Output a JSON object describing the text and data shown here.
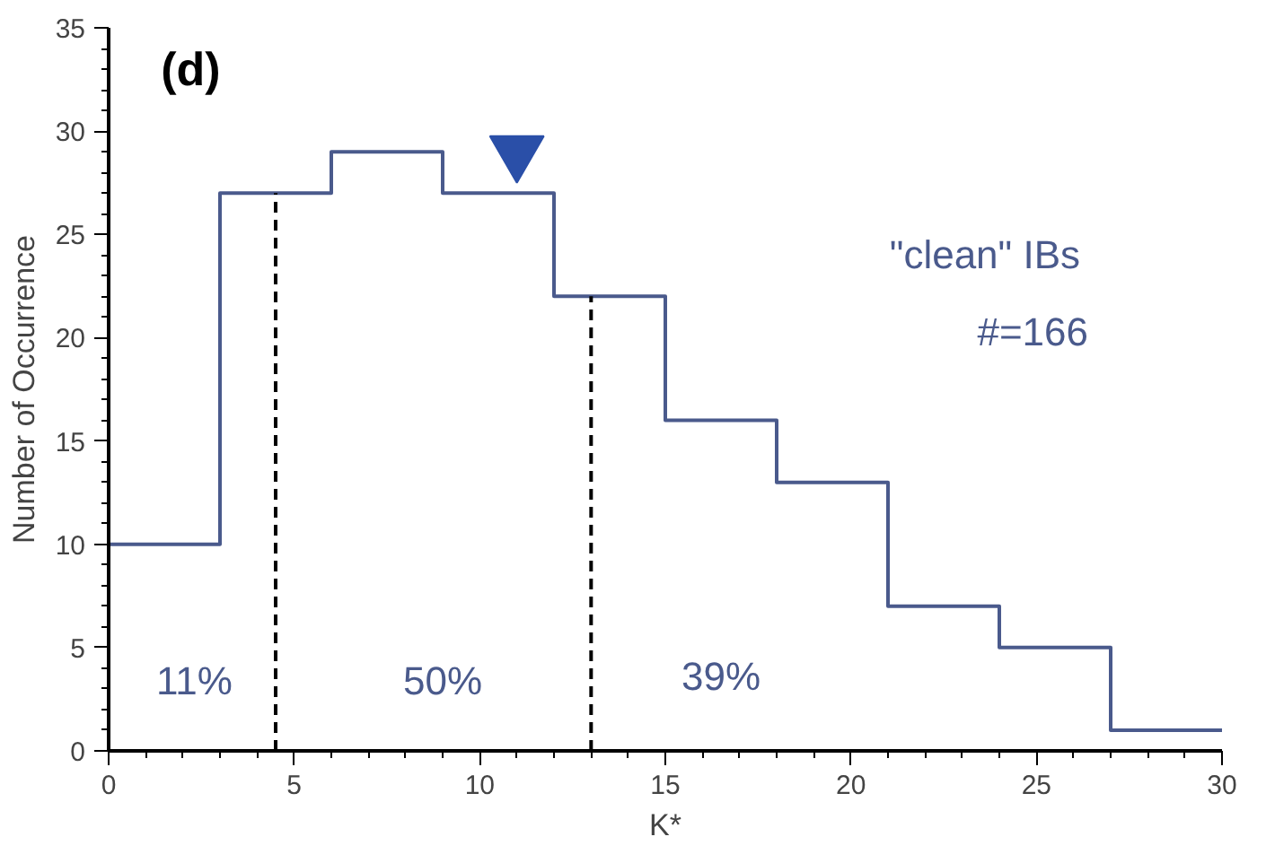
{
  "chart_data": {
    "type": "histogram",
    "xlabel": "K*",
    "ylabel": "Number of Occurrence",
    "bins": [
      0,
      3,
      6,
      9,
      12,
      15,
      18,
      21,
      24,
      27,
      30
    ],
    "values": [
      10,
      27,
      29,
      27,
      22,
      16,
      13,
      7,
      5,
      1
    ],
    "color": "#4a5a8c",
    "series": [
      {
        "type": "scatter",
        "x": [
          11
        ],
        "values": [
          29
        ],
        "color": "#2a4fa8",
        "marker": "triangle"
      }
    ],
    "xlim": [
      0,
      30
    ],
    "xticks": [
      0,
      5,
      10,
      15,
      20,
      25,
      30
    ],
    "ylim": [
      0,
      35
    ],
    "yticks": [
      0,
      5,
      10,
      15,
      20,
      25,
      30,
      35
    ],
    "grid": false,
    "ref_lines": [
      {
        "axis": "x",
        "value": 4.5,
        "color": "#000000",
        "line_style": "dashed"
      },
      {
        "axis": "x",
        "value": 13,
        "color": "#000000",
        "line_style": "dashed"
      }
    ],
    "annotations": [
      "(d)",
      "\"clean\" IBs",
      "#=166",
      "11%",
      "50%",
      "39%"
    ]
  }
}
